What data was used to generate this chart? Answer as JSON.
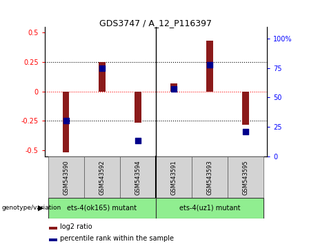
{
  "title": "GDS3747 / A_12_P116397",
  "samples": [
    "GSM543590",
    "GSM543592",
    "GSM543594",
    "GSM543591",
    "GSM543593",
    "GSM543595"
  ],
  "log2_ratio": [
    -0.52,
    0.25,
    -0.265,
    0.07,
    0.43,
    -0.28
  ],
  "percentile_rank": [
    30,
    75,
    13,
    57,
    78,
    21
  ],
  "bar_color": "#8B1A1A",
  "dot_color": "#00008B",
  "ylim_left": [
    -0.55,
    0.55
  ],
  "ylim_right": [
    0,
    110
  ],
  "yticks_left": [
    -0.5,
    -0.25,
    0,
    0.25,
    0.5
  ],
  "yticks_right": [
    0,
    25,
    50,
    75,
    100
  ],
  "left_tick_labels": [
    "-0.5",
    "-0.25",
    "0",
    "0.25",
    "0.5"
  ],
  "right_tick_labels": [
    "0",
    "25",
    "50",
    "75",
    "100%"
  ],
  "hlines": [
    -0.25,
    0.0,
    0.25
  ],
  "hline_styles": [
    "dotted",
    "dotted",
    "dotted"
  ],
  "hline_colors": [
    "black",
    "red",
    "black"
  ],
  "legend_log2": "log2 ratio",
  "legend_pct": "percentile rank within the sample",
  "group1_label": "ets-4(ok165) mutant",
  "group2_label": "ets-4(uz1) mutant",
  "group_color": "#90EE90",
  "label_bg": "#d3d3d3",
  "bar_width": 0.18
}
